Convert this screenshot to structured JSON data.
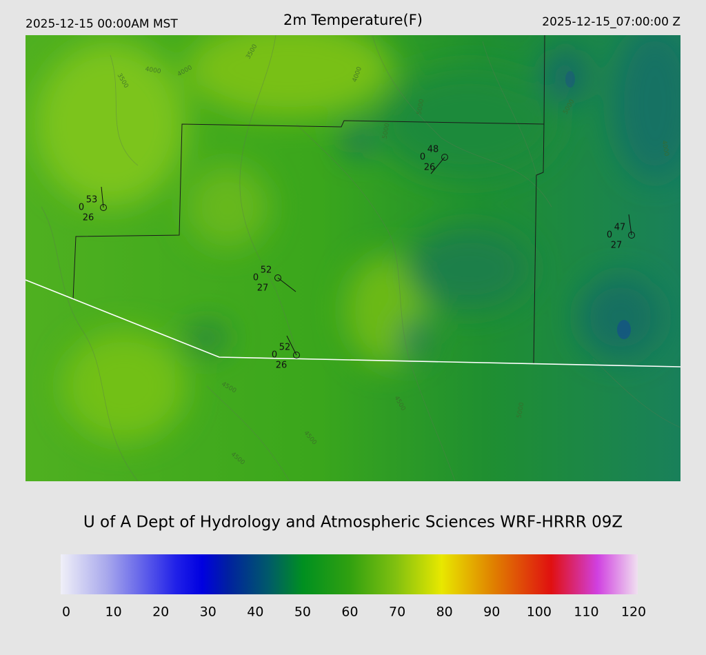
{
  "header": {
    "left": "2025-12-15 00:00AM MST",
    "title": "2m Temperature(F)",
    "right": "2025-12-15_07:00:00 Z"
  },
  "stations": [
    {
      "temp": 53,
      "wind": 0,
      "dewpoint": 26
    },
    {
      "temp": 52,
      "wind": 0,
      "dewpoint": 27
    },
    {
      "temp": 52,
      "wind": 0,
      "dewpoint": 26
    },
    {
      "temp": 48,
      "wind": 0,
      "dewpoint": 26
    },
    {
      "temp": 47,
      "wind": 0,
      "dewpoint": 27
    }
  ],
  "contour_labels": [
    "4000",
    "4000",
    "3500",
    "3500",
    "4000",
    "5000",
    "5000",
    "5000",
    "4500",
    "4500",
    "4500",
    "5000",
    "4000",
    "4500"
  ],
  "footer": {
    "title": "U of A Dept of Hydrology and Atmospheric Sciences WRF-HRRR 09Z"
  },
  "colorbar": {
    "range": [
      0,
      120
    ],
    "ticks": [
      0,
      10,
      20,
      30,
      40,
      50,
      60,
      70,
      80,
      90,
      100,
      110,
      120
    ]
  }
}
